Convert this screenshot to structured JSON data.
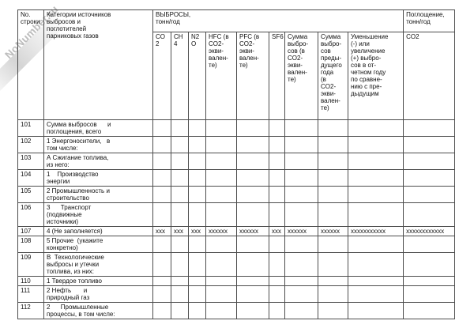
{
  "watermark": {
    "text": "NoNumber.ru"
  },
  "table": {
    "header": {
      "row_no": "No.\nстроки",
      "categories": "Категории источников\nвыбросов и\nпоглотителей\nпарниковых газов",
      "emissions_group": "ВЫБРОСЫ,\nтонн/год",
      "absorption_group": "Поглощение,\nтонн/год",
      "gas_columns": [
        "CO\n2",
        "CH\n4",
        "N2\nO",
        "HFC (в\nCO2-\nэкви-\nвален-\nте)",
        "PFC (в\nCO2-\nэкви-\nвален-\nте)",
        "SF6",
        "Сумма\nвыбро-\nсов (в\nCO2-\nэкви-\nвален-\nте)",
        "Сумма\nвыбро-\nсов\nпреды-\nдущего\nгода\n(в\nCO2-\nэкви-\nвален-\nте)",
        "Уменьшение\n(-) или\nувеличение\n(+) выбро-\nсов в от-\nчетном году\nпо сравне-\nнию с пре-\nдыдущим"
      ],
      "absorption_column": "CO2"
    },
    "rows": [
      {
        "no": "101",
        "category": "Сумма выбросов      и\nпоглощения, всего",
        "values": [
          "",
          "",
          "",
          "",
          "",
          "",
          "",
          "",
          "",
          ""
        ]
      },
      {
        "no": "102",
        "category": "1 Энергоносители,   в\nтом числе:",
        "values": [
          "",
          "",
          "",
          "",
          "",
          "",
          "",
          "",
          "",
          ""
        ]
      },
      {
        "no": "103",
        "category": "А Сжигание топлива,\nиз него:",
        "values": [
          "",
          "",
          "",
          "",
          "",
          "",
          "",
          "",
          "",
          ""
        ]
      },
      {
        "no": "104",
        "category": "1    Производство\nэнергии",
        "values": [
          "",
          "",
          "",
          "",
          "",
          "",
          "",
          "",
          "",
          ""
        ]
      },
      {
        "no": "105",
        "category": "2 Промышленность и\nстроительство",
        "values": [
          "",
          "",
          "",
          "",
          "",
          "",
          "",
          "",
          "",
          ""
        ]
      },
      {
        "no": "106",
        "category": "3      Транспорт\n(подвижные\nисточники)",
        "values": [
          "",
          "",
          "",
          "",
          "",
          "",
          "",
          "",
          "",
          ""
        ]
      },
      {
        "no": "107",
        "category": "4 (Не заполняется)",
        "values": [
          "xxx",
          "xxx",
          "xxx",
          "xxxxxx",
          "xxxxxx",
          "xxx",
          "xxxxxx",
          "xxxxxx",
          "xxxxxxxxxxx",
          "xxxxxxxxxxxx"
        ]
      },
      {
        "no": "108",
        "category": "5 Прочие  (укажите\nконкретно)",
        "values": [
          "",
          "",
          "",
          "",
          "",
          "",
          "",
          "",
          "",
          ""
        ]
      },
      {
        "no": "109",
        "category": "В  Технологические\nвыбросы и утечки\nтоплива, из них:",
        "values": [
          "",
          "",
          "",
          "",
          "",
          "",
          "",
          "",
          "",
          ""
        ]
      },
      {
        "no": "110",
        "category": "1 Твердое топливо",
        "values": [
          "",
          "",
          "",
          "",
          "",
          "",
          "",
          "",
          "",
          ""
        ]
      },
      {
        "no": "111",
        "category": "2 Нефть       и\nприродный газ",
        "values": [
          "",
          "",
          "",
          "",
          "",
          "",
          "",
          "",
          "",
          ""
        ]
      },
      {
        "no": "112",
        "category": "2      Промышленные\nпроцессы, в том числе:",
        "values": [
          "",
          "",
          "",
          "",
          "",
          "",
          "",
          "",
          "",
          ""
        ]
      }
    ]
  }
}
